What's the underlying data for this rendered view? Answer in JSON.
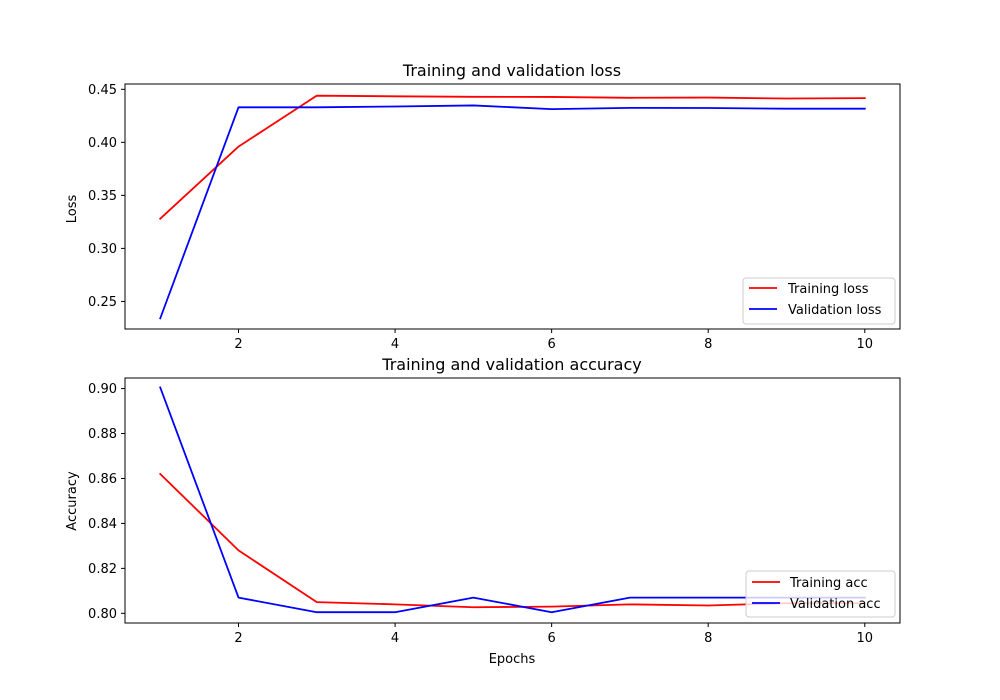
{
  "chart_data": [
    {
      "type": "line",
      "title": "Training and validation loss",
      "xlabel": "",
      "ylabel": "Loss",
      "xlim": [
        0.55,
        10.45
      ],
      "ylim": [
        0.224,
        0.455
      ],
      "xticks": [
        2,
        4,
        6,
        8,
        10
      ],
      "yticks": [
        0.25,
        0.3,
        0.35,
        0.4,
        0.45
      ],
      "yticks_labels": [
        "0.25",
        "0.30",
        "0.35",
        "0.40",
        "0.45"
      ],
      "x": [
        1,
        2,
        3,
        4,
        5,
        6,
        7,
        8,
        9,
        10
      ],
      "grid": false,
      "legend_position": "lower right",
      "series": [
        {
          "name": "Training loss",
          "color": "#ff0000",
          "values": [
            0.328,
            0.396,
            0.444,
            0.4434,
            0.4429,
            0.4428,
            0.442,
            0.4422,
            0.4413,
            0.4417
          ]
        },
        {
          "name": "Validation loss",
          "color": "#0000ff",
          "values": [
            0.234,
            0.433,
            0.433,
            0.4338,
            0.4348,
            0.4313,
            0.4325,
            0.4324,
            0.4317,
            0.4317
          ]
        }
      ]
    },
    {
      "type": "line",
      "title": "Training and validation accuracy",
      "xlabel": "Epochs",
      "ylabel": "Accuracy",
      "xlim": [
        0.55,
        10.45
      ],
      "ylim": [
        0.7957,
        0.9047
      ],
      "xticks": [
        2,
        4,
        6,
        8,
        10
      ],
      "yticks": [
        0.8,
        0.82,
        0.84,
        0.86,
        0.88,
        0.9
      ],
      "yticks_labels": [
        "0.80",
        "0.82",
        "0.84",
        "0.86",
        "0.88",
        "0.90"
      ],
      "x": [
        1,
        2,
        3,
        4,
        5,
        6,
        7,
        8,
        9,
        10
      ],
      "grid": false,
      "legend_position": "lower right",
      "series": [
        {
          "name": "Training acc",
          "color": "#ff0000",
          "values": [
            0.862,
            0.828,
            0.805,
            0.804,
            0.8027,
            0.803,
            0.804,
            0.8035,
            0.8045,
            0.8045
          ]
        },
        {
          "name": "Validation acc",
          "color": "#0000ff",
          "values": [
            0.9005,
            0.807,
            0.8005,
            0.8005,
            0.807,
            0.8005,
            0.807,
            0.807,
            0.807,
            0.807
          ]
        }
      ]
    }
  ]
}
